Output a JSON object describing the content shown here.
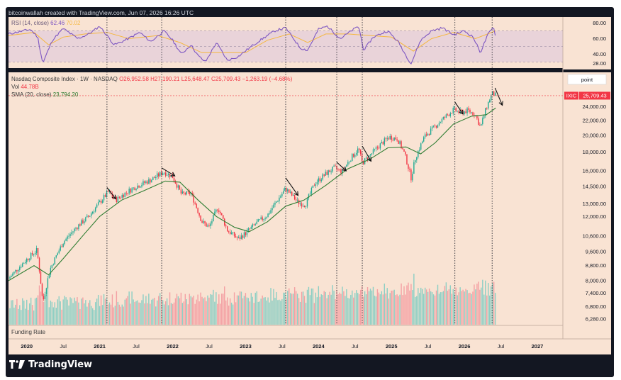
{
  "header": {
    "text": "bitcoinwallah created with TradingView.com, Jun 07, 2026 16:26 UTC"
  },
  "brand": {
    "name": "TradingView",
    "logo_icon": "tradingview-logo-icon"
  },
  "legend": {
    "rsi": "RSI (14, close)",
    "rsi_value": "62.46",
    "rsi_value2": "70.02",
    "main_title": "Nasdaq Composite Index · 1W · NASDAQ",
    "ohlc": "O26,952.58  H27,190.21  L25,648.47  C25,709.43  −1,263.19 (−4.68%)",
    "vol": "Vol",
    "vol_value": "44.78B",
    "sma": "SMA (20, close)",
    "sma_value": "23,794.20",
    "funding": "Funding Rate"
  },
  "scale_button": {
    "label": "point"
  },
  "price_tag": {
    "symbol": "IXIC",
    "value": "25,709.43"
  },
  "colors": {
    "panel_bg": "#f9e3d3",
    "up": "#22ab94",
    "down": "#f23645",
    "sma": "#2e7d32",
    "rsi": "#7e57c2",
    "rsi_ma": "#f5b841",
    "vol_up": "#8ecfc4",
    "vol_down": "#f4a1a4"
  },
  "chart_data": {
    "type": "candlestick",
    "title": "Nasdaq Composite Index · 1W · NASDAQ",
    "price_scale": "log",
    "price_axis_ticks": [
      6280,
      6800,
      7400,
      8000,
      8800,
      9600,
      10600,
      12000,
      13000,
      14500,
      16000,
      18000,
      20000,
      22000,
      24000
    ],
    "rsi_axis_ticks": [
      28.0,
      40.0,
      60.0,
      80.0
    ],
    "rsi_bands": [
      30,
      70
    ],
    "x_axis_labels": [
      "2020",
      "Jul",
      "2021",
      "Jul",
      "2022",
      "Jul",
      "2023",
      "Jul",
      "2024",
      "Jul",
      "2025",
      "Jul",
      "2026",
      "Jul",
      "2027"
    ],
    "last_close": 25709.43,
    "close_path": [
      {
        "t": 2019.75,
        "c": 8100
      },
      {
        "t": 2020.0,
        "c": 9150
      },
      {
        "t": 2020.14,
        "c": 9700
      },
      {
        "t": 2020.22,
        "c": 6950
      },
      {
        "t": 2020.32,
        "c": 8600
      },
      {
        "t": 2020.5,
        "c": 10200
      },
      {
        "t": 2020.7,
        "c": 11300
      },
      {
        "t": 2020.85,
        "c": 12000
      },
      {
        "t": 2021.0,
        "c": 13100
      },
      {
        "t": 2021.12,
        "c": 14000
      },
      {
        "t": 2021.22,
        "c": 13300
      },
      {
        "t": 2021.35,
        "c": 13900
      },
      {
        "t": 2021.5,
        "c": 14500
      },
      {
        "t": 2021.7,
        "c": 15100
      },
      {
        "t": 2021.88,
        "c": 15900
      },
      {
        "t": 2022.0,
        "c": 15400
      },
      {
        "t": 2022.12,
        "c": 13800
      },
      {
        "t": 2022.25,
        "c": 13900
      },
      {
        "t": 2022.4,
        "c": 11600
      },
      {
        "t": 2022.5,
        "c": 11200
      },
      {
        "t": 2022.62,
        "c": 12700
      },
      {
        "t": 2022.75,
        "c": 11000
      },
      {
        "t": 2022.9,
        "c": 10400
      },
      {
        "t": 2023.0,
        "c": 10800
      },
      {
        "t": 2023.15,
        "c": 11500
      },
      {
        "t": 2023.3,
        "c": 12100
      },
      {
        "t": 2023.45,
        "c": 13400
      },
      {
        "t": 2023.55,
        "c": 14300
      },
      {
        "t": 2023.72,
        "c": 13100
      },
      {
        "t": 2023.82,
        "c": 12900
      },
      {
        "t": 2023.95,
        "c": 14800
      },
      {
        "t": 2024.1,
        "c": 15700
      },
      {
        "t": 2024.22,
        "c": 16300
      },
      {
        "t": 2024.32,
        "c": 15900
      },
      {
        "t": 2024.45,
        "c": 17400
      },
      {
        "t": 2024.55,
        "c": 18400
      },
      {
        "t": 2024.6,
        "c": 16800
      },
      {
        "t": 2024.7,
        "c": 17600
      },
      {
        "t": 2024.85,
        "c": 18900
      },
      {
        "t": 2024.97,
        "c": 19800
      },
      {
        "t": 2025.08,
        "c": 19600
      },
      {
        "t": 2025.18,
        "c": 17800
      },
      {
        "t": 2025.27,
        "c": 15300
      },
      {
        "t": 2025.33,
        "c": 17400
      },
      {
        "t": 2025.45,
        "c": 19800
      },
      {
        "t": 2025.6,
        "c": 21200
      },
      {
        "t": 2025.75,
        "c": 22600
      },
      {
        "t": 2025.85,
        "c": 23500
      },
      {
        "t": 2025.95,
        "c": 23100
      },
      {
        "t": 2026.05,
        "c": 23400
      },
      {
        "t": 2026.15,
        "c": 22800
      },
      {
        "t": 2026.22,
        "c": 21000
      },
      {
        "t": 2026.3,
        "c": 23800
      },
      {
        "t": 2026.38,
        "c": 26100
      },
      {
        "t": 2026.43,
        "c": 25709
      }
    ],
    "sma_path": [
      {
        "t": 2019.75,
        "c": 8000
      },
      {
        "t": 2020.1,
        "c": 8800
      },
      {
        "t": 2020.3,
        "c": 8300
      },
      {
        "t": 2020.5,
        "c": 9200
      },
      {
        "t": 2020.8,
        "c": 10800
      },
      {
        "t": 2021.0,
        "c": 12000
      },
      {
        "t": 2021.3,
        "c": 13300
      },
      {
        "t": 2021.6,
        "c": 14100
      },
      {
        "t": 2021.9,
        "c": 15000
      },
      {
        "t": 2022.1,
        "c": 14900
      },
      {
        "t": 2022.35,
        "c": 13300
      },
      {
        "t": 2022.6,
        "c": 12000
      },
      {
        "t": 2022.85,
        "c": 11200
      },
      {
        "t": 2023.05,
        "c": 10900
      },
      {
        "t": 2023.3,
        "c": 11600
      },
      {
        "t": 2023.55,
        "c": 12800
      },
      {
        "t": 2023.8,
        "c": 13300
      },
      {
        "t": 2024.1,
        "c": 14600
      },
      {
        "t": 2024.4,
        "c": 16200
      },
      {
        "t": 2024.7,
        "c": 17200
      },
      {
        "t": 2024.95,
        "c": 18500
      },
      {
        "t": 2025.2,
        "c": 18600
      },
      {
        "t": 2025.4,
        "c": 17800
      },
      {
        "t": 2025.6,
        "c": 19100
      },
      {
        "t": 2025.85,
        "c": 21500
      },
      {
        "t": 2026.1,
        "c": 22600
      },
      {
        "t": 2026.3,
        "c": 22800
      },
      {
        "t": 2026.43,
        "c": 23794
      }
    ],
    "rsi_path": [
      {
        "t": 2019.75,
        "r": 66
      },
      {
        "t": 2020.05,
        "r": 72
      },
      {
        "t": 2020.15,
        "r": 62
      },
      {
        "t": 2020.22,
        "r": 28
      },
      {
        "t": 2020.35,
        "r": 58
      },
      {
        "t": 2020.5,
        "r": 73
      },
      {
        "t": 2020.7,
        "r": 60
      },
      {
        "t": 2020.85,
        "r": 66
      },
      {
        "t": 2021.0,
        "r": 76
      },
      {
        "t": 2021.2,
        "r": 52
      },
      {
        "t": 2021.35,
        "r": 58
      },
      {
        "t": 2021.55,
        "r": 68
      },
      {
        "t": 2021.7,
        "r": 56
      },
      {
        "t": 2021.88,
        "r": 70
      },
      {
        "t": 2022.0,
        "r": 58
      },
      {
        "t": 2022.12,
        "r": 40
      },
      {
        "t": 2022.25,
        "r": 52
      },
      {
        "t": 2022.35,
        "r": 38
      },
      {
        "t": 2022.45,
        "r": 30
      },
      {
        "t": 2022.6,
        "r": 55
      },
      {
        "t": 2022.75,
        "r": 32
      },
      {
        "t": 2022.9,
        "r": 37
      },
      {
        "t": 2023.05,
        "r": 48
      },
      {
        "t": 2023.2,
        "r": 58
      },
      {
        "t": 2023.4,
        "r": 70
      },
      {
        "t": 2023.55,
        "r": 74
      },
      {
        "t": 2023.75,
        "r": 48
      },
      {
        "t": 2023.85,
        "r": 45
      },
      {
        "t": 2024.0,
        "r": 72
      },
      {
        "t": 2024.12,
        "r": 76
      },
      {
        "t": 2024.3,
        "r": 60
      },
      {
        "t": 2024.45,
        "r": 70
      },
      {
        "t": 2024.55,
        "r": 76
      },
      {
        "t": 2024.62,
        "r": 45
      },
      {
        "t": 2024.75,
        "r": 62
      },
      {
        "t": 2024.95,
        "r": 70
      },
      {
        "t": 2025.1,
        "r": 55
      },
      {
        "t": 2025.2,
        "r": 38
      },
      {
        "t": 2025.27,
        "r": 28
      },
      {
        "t": 2025.4,
        "r": 58
      },
      {
        "t": 2025.55,
        "r": 70
      },
      {
        "t": 2025.7,
        "r": 74
      },
      {
        "t": 2025.85,
        "r": 65
      },
      {
        "t": 2026.0,
        "r": 70
      },
      {
        "t": 2026.12,
        "r": 62
      },
      {
        "t": 2026.22,
        "r": 42
      },
      {
        "t": 2026.32,
        "r": 65
      },
      {
        "t": 2026.4,
        "r": 75
      },
      {
        "t": 2026.43,
        "r": 62.46
      }
    ],
    "rsi_ma_path": [
      {
        "t": 2019.75,
        "r": 64
      },
      {
        "t": 2020.1,
        "r": 68
      },
      {
        "t": 2020.3,
        "r": 52
      },
      {
        "t": 2020.5,
        "r": 62
      },
      {
        "t": 2020.8,
        "r": 66
      },
      {
        "t": 2021.1,
        "r": 68
      },
      {
        "t": 2021.4,
        "r": 60
      },
      {
        "t": 2021.8,
        "r": 64
      },
      {
        "t": 2022.1,
        "r": 55
      },
      {
        "t": 2022.4,
        "r": 42
      },
      {
        "t": 2022.7,
        "r": 42
      },
      {
        "t": 2023.0,
        "r": 42
      },
      {
        "t": 2023.3,
        "r": 58
      },
      {
        "t": 2023.6,
        "r": 66
      },
      {
        "t": 2023.85,
        "r": 55
      },
      {
        "t": 2024.1,
        "r": 66
      },
      {
        "t": 2024.4,
        "r": 66
      },
      {
        "t": 2024.7,
        "r": 64
      },
      {
        "t": 2025.0,
        "r": 62
      },
      {
        "t": 2025.3,
        "r": 44
      },
      {
        "t": 2025.55,
        "r": 60
      },
      {
        "t": 2025.85,
        "r": 68
      },
      {
        "t": 2026.15,
        "r": 60
      },
      {
        "t": 2026.43,
        "r": 70.02
      }
    ],
    "vertical_markers": [
      2021.1,
      2021.85,
      2023.55,
      2024.25,
      2024.6,
      2025.87,
      2026.38
    ],
    "down_arrows": [
      {
        "t1": 2021.1,
        "p1": 14400,
        "t2": 2021.22,
        "p2": 13400
      },
      {
        "t1": 2021.85,
        "p1": 16300,
        "t2": 2022.03,
        "p2": 15500
      },
      {
        "t1": 2023.55,
        "p1": 15300,
        "t2": 2023.72,
        "p2": 13700
      },
      {
        "t1": 2024.25,
        "p1": 16900,
        "t2": 2024.38,
        "p2": 16000
      },
      {
        "t1": 2024.6,
        "p1": 18700,
        "t2": 2024.72,
        "p2": 17000
      },
      {
        "t1": 2025.87,
        "p1": 24700,
        "t2": 2025.98,
        "p2": 22900
      },
      {
        "t1": 2026.42,
        "p1": 27000,
        "t2": 2026.52,
        "p2": 24200
      }
    ]
  }
}
